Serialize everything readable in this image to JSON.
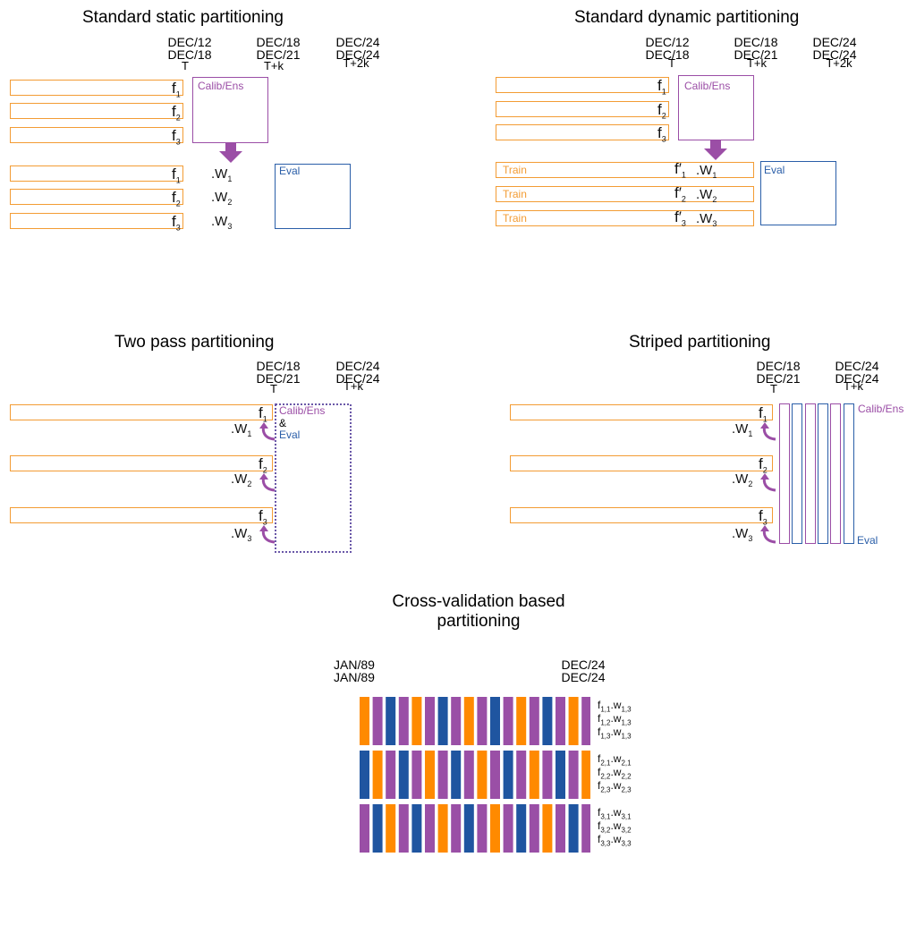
{
  "colors": {
    "orange": "#f39c34",
    "purple": "#9b4ea6",
    "blue": "#2a5ea8",
    "cv_blue": "#1f55a0",
    "cv_orange": "#ff8a00",
    "cv_purple": "#9a4fa6"
  },
  "static": {
    "title": "Standard static partitioning",
    "dates": [
      {
        "l1": "DEC/12",
        "l2": "DEC/18",
        "t": "T"
      },
      {
        "l1": "DEC/18",
        "l2": "DEC/21",
        "t": "T+k"
      },
      {
        "l1": "DEC/24",
        "l2": "DEC/24",
        "t": "T+2k"
      }
    ],
    "calib": "Calib/Ens",
    "eval": "Eval",
    "f": [
      "f",
      "f",
      "f"
    ],
    "f_sub": [
      "1",
      "2",
      "3"
    ],
    "w": [
      ".W",
      ".W",
      ".W"
    ],
    "w_sub": [
      "1",
      "2",
      "3"
    ]
  },
  "dynamic": {
    "title": "Standard dynamic partitioning",
    "dates": [
      {
        "l1": "DEC/12",
        "l2": "DEC/18",
        "t": "T"
      },
      {
        "l1": "DEC/18",
        "l2": "DEC/21",
        "t": "T+k"
      },
      {
        "l1": "DEC/24",
        "l2": "DEC/24",
        "t": "T+2k"
      }
    ],
    "calib": "Calib/Ens",
    "eval": "Eval",
    "train": [
      "Train",
      "Train",
      "Train"
    ],
    "fp": [
      "f′",
      "f′",
      "f′"
    ],
    "fp_sub": [
      "1",
      "2",
      "3"
    ],
    "w": [
      ".W",
      ".W",
      ".W"
    ],
    "w_sub": [
      "1",
      "2",
      "3"
    ]
  },
  "twopass": {
    "title": "Two pass partitioning",
    "dates": [
      {
        "l1": "DEC/18",
        "l2": "DEC/21",
        "t": "T"
      },
      {
        "l1": "DEC/24",
        "l2": "DEC/24",
        "t": "T+k"
      }
    ],
    "calib": "Calib/Ens",
    "amp": "&",
    "eval": "Eval"
  },
  "striped": {
    "title": "Striped partitioning",
    "dates": [
      {
        "l1": "DEC/18",
        "l2": "DEC/21",
        "t": "T"
      },
      {
        "l1": "DEC/24",
        "l2": "DEC/24",
        "t": "T+k"
      }
    ],
    "calib": "Calib/Ens",
    "eval": "Eval"
  },
  "cv": {
    "title_l1": "Cross-validation based",
    "title_l2": "partitioning",
    "date_start_l1": "JAN/89",
    "date_start_l2": "JAN/89",
    "date_end_l1": "DEC/24",
    "date_end_l2": "DEC/24",
    "groups": [
      {
        "rows": [
          {
            "f": "f",
            "fs": "1,1",
            "w": ".w",
            "ws": "1,3"
          },
          {
            "f": "f",
            "fs": "1,2",
            "w": ".w",
            "ws": "1,3"
          },
          {
            "f": "f",
            "fs": "1,3",
            "w": ".w",
            "ws": "1,3"
          }
        ],
        "pattern": [
          "O",
          "P",
          "B",
          "P",
          "O",
          "P",
          "B",
          "P",
          "O",
          "P",
          "B",
          "P",
          "O",
          "P",
          "B",
          "P",
          "O",
          "P"
        ]
      },
      {
        "rows": [
          {
            "f": "f",
            "fs": "2,1",
            "w": ".w",
            "ws": "2,1"
          },
          {
            "f": "f",
            "fs": "2,2",
            "w": ".w",
            "ws": "2,2"
          },
          {
            "f": "f",
            "fs": "2,3",
            "w": ".w",
            "ws": "2,3"
          }
        ],
        "pattern": [
          "B",
          "O",
          "P",
          "B",
          "P",
          "O",
          "P",
          "B",
          "P",
          "O",
          "P",
          "B",
          "P",
          "O",
          "P",
          "B",
          "P",
          "O"
        ]
      },
      {
        "rows": [
          {
            "f": "f",
            "fs": "3,1",
            "w": ".w",
            "ws": "3,1"
          },
          {
            "f": "f",
            "fs": "3,2",
            "w": ".w",
            "ws": "3,2"
          },
          {
            "f": "f",
            "fs": "3,3",
            "w": ".w",
            "ws": "3,3"
          }
        ],
        "pattern": [
          "P",
          "B",
          "O",
          "P",
          "B",
          "P",
          "O",
          "P",
          "B",
          "P",
          "O",
          "P",
          "B",
          "P",
          "O",
          "P",
          "B",
          "P"
        ]
      }
    ]
  }
}
